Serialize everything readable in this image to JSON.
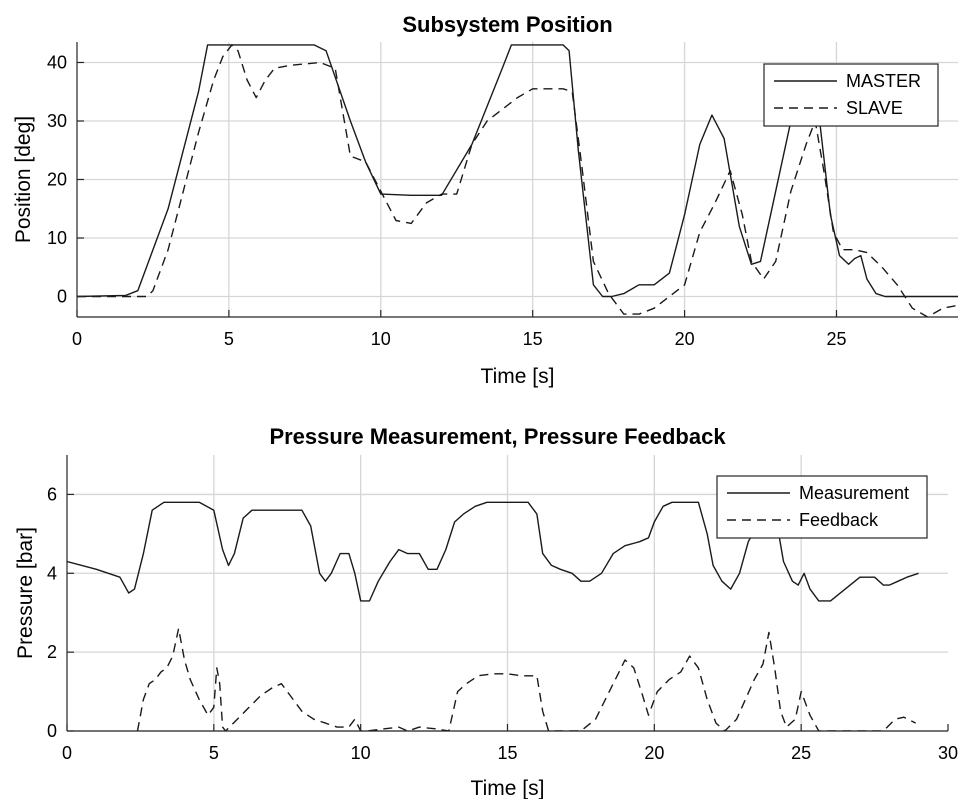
{
  "chart_data": [
    {
      "type": "line",
      "title": "Subsystem Position",
      "xlabel": "Time [s]",
      "ylabel": "Position [deg]",
      "xlim": [
        0,
        29
      ],
      "ylim": [
        -3.5,
        43.5
      ],
      "xticks": [
        0,
        5,
        10,
        15,
        20,
        25
      ],
      "yticks": [
        0,
        10,
        20,
        30,
        40
      ],
      "grid": true,
      "legend_position": "top-right",
      "series": [
        {
          "name": "MASTER",
          "style": "solid",
          "x": [
            0,
            1.6,
            2.0,
            3.0,
            4.0,
            4.3,
            5.0,
            6.0,
            7.0,
            7.8,
            8.2,
            9.0,
            9.5,
            10.0,
            11.0,
            12.0,
            13.0,
            14.0,
            14.3,
            15.0,
            16.0,
            16.2,
            16.5,
            17.0,
            17.3,
            17.6,
            18.0,
            18.5,
            19.0,
            19.5,
            20.0,
            20.5,
            20.9,
            21.3,
            21.8,
            22.2,
            22.5,
            23.0,
            23.5,
            24.0,
            24.4,
            24.8,
            25.1,
            25.4,
            25.6,
            25.8,
            26.0,
            26.3,
            26.6,
            29.0
          ],
          "y": [
            0,
            0.2,
            1,
            15,
            35,
            43,
            43,
            43,
            43,
            43,
            42,
            30,
            23,
            17.5,
            17.3,
            17.3,
            26,
            39,
            43,
            43,
            43,
            42,
            25,
            2,
            0,
            0,
            0.5,
            2,
            2,
            4,
            14,
            26,
            31,
            27,
            12,
            5.5,
            6,
            18,
            30,
            37,
            32,
            14,
            7,
            5.5,
            6.5,
            7,
            3,
            0.5,
            0,
            0
          ]
        },
        {
          "name": "SLAVE",
          "style": "dashed",
          "x": [
            0,
            2.0,
            2.3,
            2.5,
            3.0,
            3.5,
            4.0,
            4.5,
            4.8,
            5.1,
            5.3,
            5.6,
            5.9,
            6.2,
            6.5,
            7.0,
            8.0,
            8.5,
            9.0,
            9.5,
            10.0,
            10.5,
            11.0,
            11.5,
            12.0,
            12.5,
            13.0,
            13.5,
            14.0,
            14.5,
            15.0,
            16.0,
            16.3,
            16.6,
            17.0,
            17.5,
            18.0,
            18.5,
            19.0,
            19.5,
            20.0,
            20.5,
            21.0,
            21.5,
            21.9,
            22.2,
            22.6,
            23.0,
            23.5,
            24.0,
            24.3,
            24.6,
            24.9,
            25.2,
            25.6,
            26.0,
            26.5,
            27.0,
            27.5,
            28.0,
            28.5,
            29.0
          ],
          "y": [
            0,
            0,
            0,
            1,
            8,
            18,
            28,
            37,
            41,
            43,
            42,
            37,
            34,
            37,
            39,
            39.5,
            40,
            39,
            24,
            23,
            18,
            13,
            12.5,
            16,
            17.5,
            17.5,
            26,
            30,
            32,
            34,
            35.5,
            35.5,
            35,
            23,
            6,
            0.5,
            -3,
            -3,
            -2,
            0,
            2,
            11,
            16,
            21.5,
            14,
            6,
            3,
            6,
            18,
            26,
            30,
            21,
            11,
            8,
            8,
            7.5,
            5,
            2,
            -2,
            -3.5,
            -2,
            -1.5
          ]
        }
      ]
    },
    {
      "type": "line",
      "title": "Pressure Measurement, Pressure Feedback",
      "xlabel": "Time [s]",
      "ylabel": "Pressure [bar]",
      "xlim": [
        0,
        30
      ],
      "ylim": [
        0,
        7
      ],
      "xticks": [
        0,
        5,
        10,
        15,
        20,
        25,
        30
      ],
      "yticks": [
        0,
        2,
        4,
        6
      ],
      "grid": true,
      "legend_position": "top-right",
      "series": [
        {
          "name": "Measurement",
          "style": "solid",
          "x": [
            0,
            1.0,
            1.8,
            2.1,
            2.3,
            2.6,
            2.9,
            3.3,
            4.0,
            4.5,
            5.0,
            5.3,
            5.5,
            5.7,
            6.0,
            6.3,
            6.6,
            7.0,
            7.5,
            8.0,
            8.3,
            8.6,
            8.8,
            9.0,
            9.3,
            9.6,
            9.8,
            10.0,
            10.3,
            10.6,
            11.0,
            11.3,
            11.6,
            12.0,
            12.3,
            12.6,
            12.9,
            13.2,
            13.5,
            13.9,
            14.3,
            14.8,
            15.2,
            15.7,
            16.0,
            16.2,
            16.5,
            16.8,
            17.2,
            17.5,
            17.8,
            18.2,
            18.6,
            19.0,
            19.5,
            19.8,
            20.0,
            20.3,
            20.6,
            21.0,
            21.5,
            21.8,
            22.0,
            22.3,
            22.6,
            22.9,
            23.2,
            23.5,
            23.8,
            24.1,
            24.4,
            24.7,
            24.9,
            25.1,
            25.3,
            25.6,
            26.0,
            26.5,
            27.0,
            27.5,
            27.8,
            28.0,
            28.3,
            28.6,
            29.0
          ],
          "y": [
            4.3,
            4.1,
            3.9,
            3.5,
            3.6,
            4.5,
            5.6,
            5.8,
            5.8,
            5.8,
            5.6,
            4.6,
            4.2,
            4.5,
            5.4,
            5.6,
            5.6,
            5.6,
            5.6,
            5.6,
            5.2,
            4.0,
            3.8,
            4.0,
            4.5,
            4.5,
            4.0,
            3.3,
            3.3,
            3.8,
            4.3,
            4.6,
            4.5,
            4.5,
            4.1,
            4.1,
            4.6,
            5.3,
            5.5,
            5.7,
            5.8,
            5.8,
            5.8,
            5.8,
            5.5,
            4.5,
            4.2,
            4.1,
            4.0,
            3.8,
            3.8,
            4.0,
            4.5,
            4.7,
            4.8,
            4.9,
            5.3,
            5.7,
            5.8,
            5.8,
            5.8,
            5.0,
            4.2,
            3.8,
            3.6,
            4.0,
            4.8,
            5.2,
            5.4,
            5.6,
            4.3,
            3.8,
            3.7,
            4.0,
            3.6,
            3.3,
            3.3,
            3.6,
            3.9,
            3.9,
            3.7,
            3.7,
            3.8,
            3.9,
            4.0
          ]
        },
        {
          "name": "Feedback",
          "style": "dashed",
          "x": [
            2.4,
            2.6,
            2.8,
            3.0,
            3.2,
            3.4,
            3.6,
            3.8,
            4.0,
            4.2,
            4.5,
            4.8,
            5.0,
            5.1,
            5.2,
            5.3,
            5.4,
            5.8,
            6.2,
            6.6,
            7.0,
            7.3,
            7.6,
            8.0,
            8.4,
            8.8,
            9.2,
            9.6,
            9.8,
            10.0,
            10.2,
            11.3,
            11.6,
            12.0,
            12.6,
            13.0,
            13.3,
            13.6,
            14.0,
            14.5,
            15.0,
            15.5,
            16.0,
            16.2,
            16.4,
            17.5,
            18.0,
            18.4,
            18.8,
            19.0,
            19.3,
            19.6,
            19.8,
            20.1,
            20.5,
            20.9,
            21.2,
            21.5,
            21.8,
            22.1,
            22.4,
            22.8,
            23.1,
            23.4,
            23.7,
            23.9,
            24.1,
            24.3,
            24.5,
            24.8,
            25.0,
            25.3,
            25.6,
            27.8,
            28.2,
            28.5,
            28.9
          ],
          "y": [
            0,
            0.8,
            1.2,
            1.3,
            1.5,
            1.6,
            1.9,
            2.6,
            1.8,
            1.3,
            0.8,
            0.4,
            0.6,
            1.6,
            1.2,
            0.1,
            0,
            0.3,
            0.6,
            0.9,
            1.1,
            1.2,
            0.9,
            0.5,
            0.3,
            0.2,
            0.1,
            0.1,
            0.3,
            0,
            0,
            0.1,
            0,
            0.1,
            0.05,
            0,
            1.0,
            1.2,
            1.4,
            1.45,
            1.45,
            1.4,
            1.4,
            0.5,
            0,
            0,
            0.3,
            0.9,
            1.5,
            1.8,
            1.6,
            0.9,
            0.4,
            1.0,
            1.3,
            1.5,
            1.9,
            1.6,
            0.8,
            0.2,
            0,
            0.3,
            0.8,
            1.3,
            1.7,
            2.5,
            1.6,
            0.5,
            0.1,
            0.3,
            1.0,
            0.4,
            0,
            0,
            0.3,
            0.35,
            0.2
          ]
        }
      ]
    }
  ]
}
